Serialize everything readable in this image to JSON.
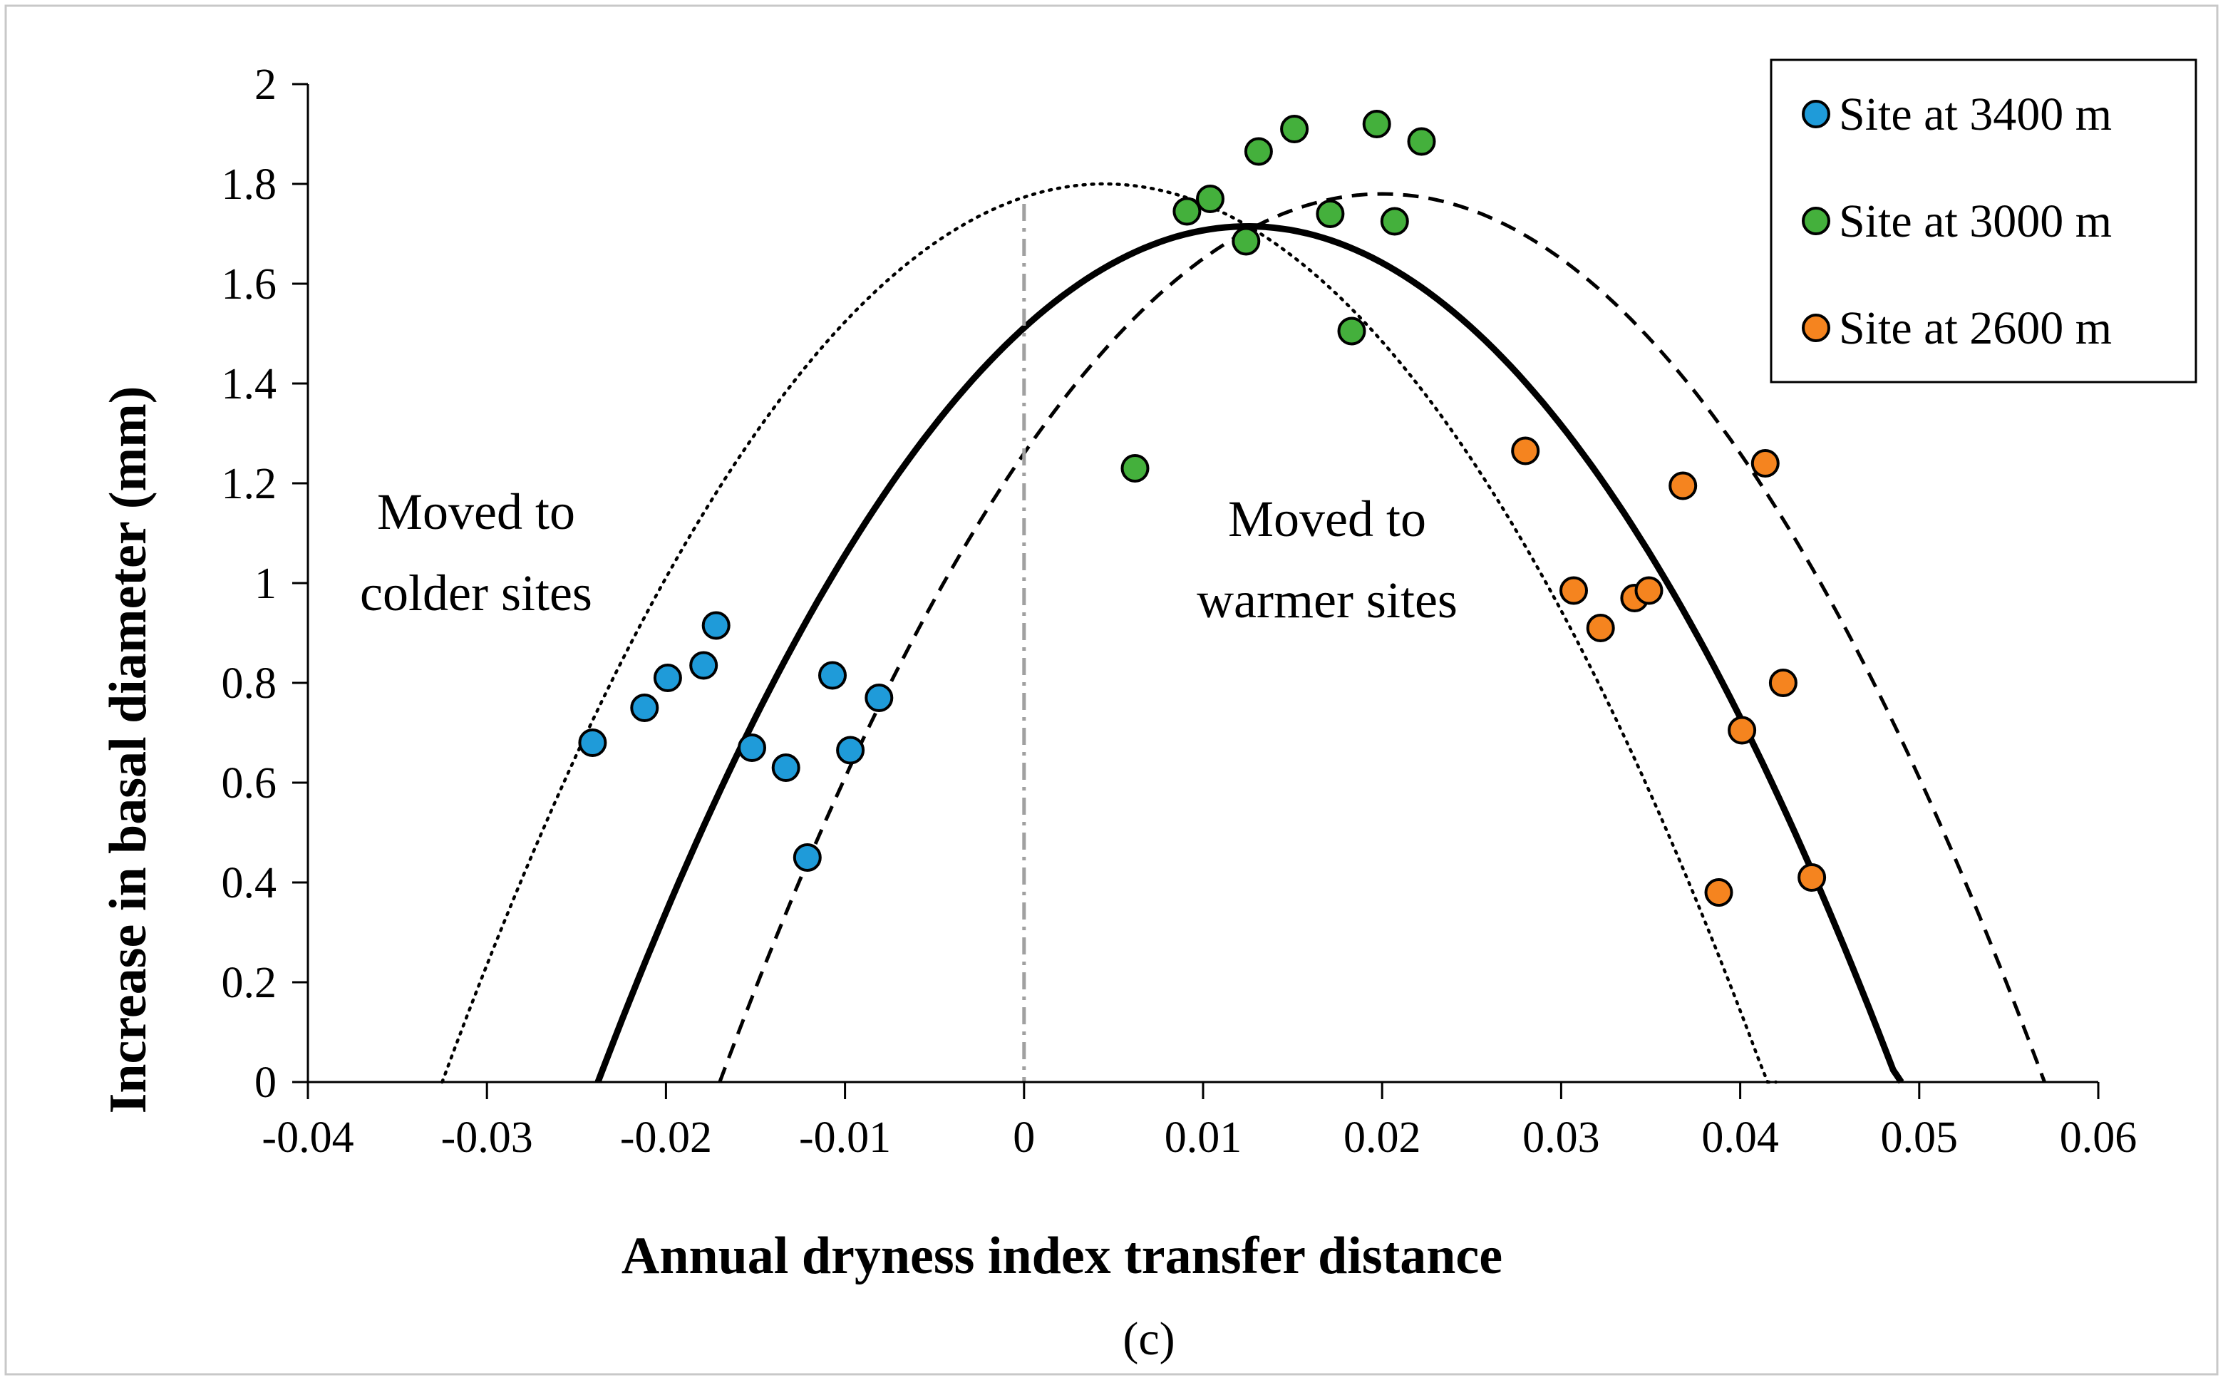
{
  "chart_data": {
    "type": "scatter",
    "title": "",
    "xlabel": "Annual dryness index transfer distance",
    "ylabel": "Increase in basal diameter (mm)",
    "caption": "(c)",
    "xlim": [
      -0.04,
      0.06
    ],
    "ylim": [
      0,
      2
    ],
    "xticks": [
      -0.04,
      -0.03,
      -0.02,
      -0.01,
      0,
      0.01,
      0.02,
      0.03,
      0.04,
      0.05,
      0.06
    ],
    "xtick_labels": [
      "-0.04",
      "-0.03",
      "-0.02",
      "-0.01",
      "0",
      "0.01",
      "0.02",
      "0.03",
      "0.04",
      "0.05",
      "0.06"
    ],
    "yticks": [
      0,
      0.2,
      0.4,
      0.6,
      0.8,
      1,
      1.2,
      1.4,
      1.6,
      1.8,
      2
    ],
    "ytick_labels": [
      "0",
      "0.2",
      "0.4",
      "0.6",
      "0.8",
      "1",
      "1.2",
      "1.4",
      "1.6",
      "1.8",
      "2"
    ],
    "grid": false,
    "legend_position": "top-right",
    "annotations": [
      {
        "id": "colder",
        "lines": [
          "Moved to",
          "colder sites"
        ]
      },
      {
        "id": "warmer",
        "lines": [
          "Moved to",
          "warmer sites"
        ]
      }
    ],
    "series": [
      {
        "name": "Site at 3400 m",
        "color": "#1f9bd9",
        "points": [
          [
            -0.0241,
            0.68
          ],
          [
            -0.0212,
            0.75
          ],
          [
            -0.0199,
            0.81
          ],
          [
            -0.0179,
            0.835
          ],
          [
            -0.0172,
            0.915
          ],
          [
            -0.0152,
            0.67
          ],
          [
            -0.0133,
            0.63
          ],
          [
            -0.0121,
            0.45
          ],
          [
            -0.0107,
            0.815
          ],
          [
            -0.0097,
            0.665
          ],
          [
            -0.0081,
            0.77
          ]
        ]
      },
      {
        "name": "Site at 3000 m",
        "color": "#44b03c",
        "points": [
          [
            0.0062,
            1.23
          ],
          [
            0.0091,
            1.745
          ],
          [
            0.0104,
            1.77
          ],
          [
            0.0124,
            1.685
          ],
          [
            0.0131,
            1.865
          ],
          [
            0.0151,
            1.91
          ],
          [
            0.0171,
            1.74
          ],
          [
            0.0183,
            1.505
          ],
          [
            0.0197,
            1.92
          ],
          [
            0.0207,
            1.725
          ],
          [
            0.0222,
            1.885
          ]
        ]
      },
      {
        "name": "Site at 2600 m",
        "color": "#f5841f",
        "points": [
          [
            0.028,
            1.265
          ],
          [
            0.0307,
            0.985
          ],
          [
            0.0322,
            0.91
          ],
          [
            0.0341,
            0.97
          ],
          [
            0.0349,
            0.985
          ],
          [
            0.0368,
            1.195
          ],
          [
            0.0388,
            0.38
          ],
          [
            0.0401,
            0.705
          ],
          [
            0.0414,
            1.24
          ],
          [
            0.0424,
            0.8
          ],
          [
            0.044,
            0.41
          ]
        ]
      }
    ],
    "curves": [
      {
        "name": "fit-dotted",
        "style": "dotted",
        "vertex": [
          0.0045,
          1.8
        ],
        "roots": [
          -0.0325,
          0.042
        ]
      },
      {
        "name": "fit-solid",
        "style": "solid",
        "vertex": [
          0.0125,
          1.715
        ],
        "roots": [
          -0.0238,
          0.049
        ]
      },
      {
        "name": "fit-dashed",
        "style": "dashed",
        "vertex": [
          0.02,
          1.78
        ],
        "roots": [
          -0.017,
          0.057
        ]
      }
    ],
    "reference_line": {
      "x": 0,
      "style": "dash-dot",
      "color": "#a0a0a0"
    }
  }
}
